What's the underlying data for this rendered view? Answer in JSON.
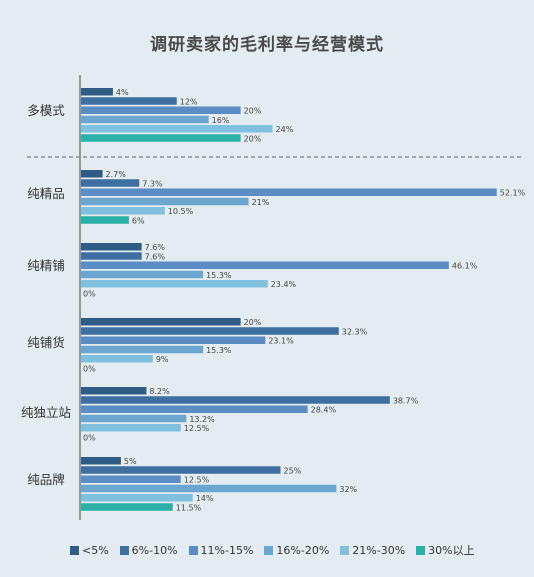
{
  "chart_data": {
    "type": "bar",
    "orientation": "horizontal",
    "title": "调研卖家的毛利率与经营模式",
    "categories": [
      "多模式",
      "纯精品",
      "纯精铺",
      "纯铺货",
      "纯独立站",
      "纯品牌"
    ],
    "series": [
      {
        "name": "<5%",
        "color": "#2e5c84",
        "values": [
          4,
          2.7,
          7.6,
          20,
          8.2,
          5
        ],
        "labels": [
          "4%",
          "2.7%",
          "7.6%",
          "20%",
          "8.2%",
          "5%"
        ]
      },
      {
        "name": "6%-10%",
        "color": "#3e6fa0",
        "values": [
          12,
          7.3,
          7.6,
          32.3,
          38.7,
          25
        ],
        "labels": [
          "12%",
          "7.3%",
          "7.6%",
          "32.3%",
          "38.7%",
          "25%"
        ]
      },
      {
        "name": "11%-15%",
        "color": "#5b8cc4",
        "values": [
          20,
          52.1,
          46.1,
          23.1,
          28.4,
          12.5
        ],
        "labels": [
          "20%",
          "52.1%",
          "46.1%",
          "23.1%",
          "28.4%",
          "12.5%"
        ]
      },
      {
        "name": "16%-20%",
        "color": "#6aa6cf",
        "values": [
          16,
          21,
          15.3,
          15.3,
          13.2,
          32
        ],
        "labels": [
          "16%",
          "21%",
          "15.3%",
          "15.3%",
          "13.2%",
          "32%"
        ]
      },
      {
        "name": "21%-30%",
        "color": "#7fc0df",
        "values": [
          24,
          10.5,
          23.4,
          9,
          12.5,
          14
        ],
        "labels": [
          "24%",
          "10.5%",
          "23.4%",
          "9%",
          "12.5%",
          "14%"
        ]
      },
      {
        "name": "30%以上",
        "color": "#2ab0a6",
        "values": [
          20,
          6,
          0,
          0,
          0,
          11.5
        ],
        "labels": [
          "20%",
          "6%",
          "0%",
          "0%",
          "0%",
          "11.5%"
        ]
      }
    ],
    "legend_position": "bottom",
    "grid": false,
    "separator_after_category": "多模式"
  }
}
